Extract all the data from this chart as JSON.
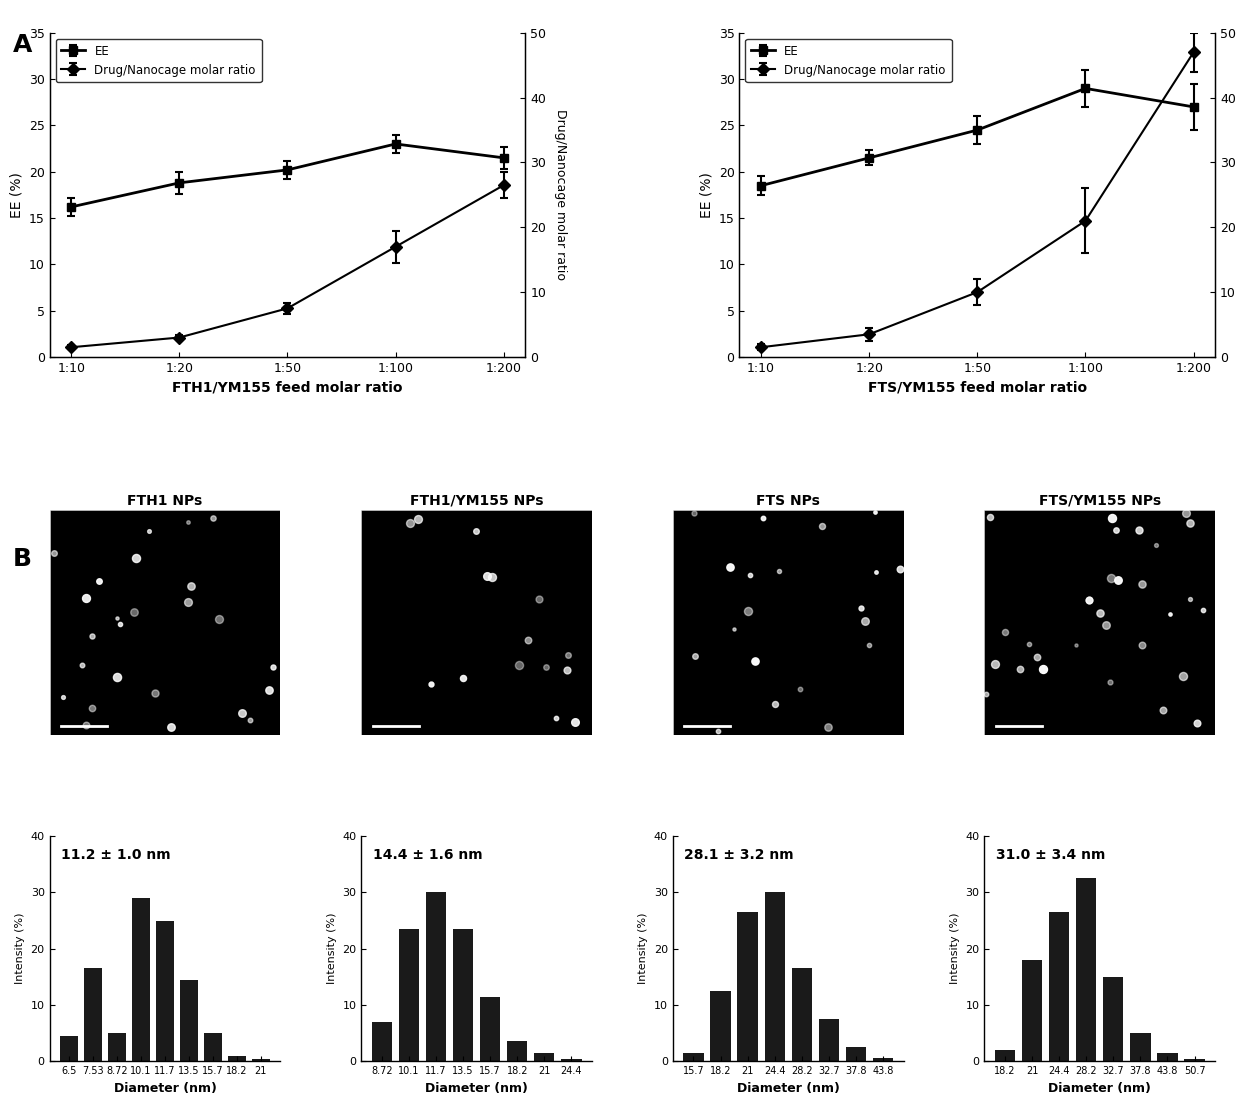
{
  "panel_A_left": {
    "xlabel": "FTH1/YM155 feed molar ratio",
    "xtick_labels": [
      "1:10",
      "1:20",
      "1:50",
      "1:100",
      "1:200"
    ],
    "EE_values": [
      16.2,
      18.8,
      20.2,
      23.0,
      21.5
    ],
    "EE_errors": [
      1.0,
      1.2,
      1.0,
      1.0,
      1.2
    ],
    "drug_values": [
      1.5,
      3.0,
      7.5,
      17.0,
      26.5
    ],
    "drug_errors": [
      0.3,
      0.4,
      0.8,
      2.5,
      2.0
    ],
    "EE_ylim": [
      0,
      35
    ],
    "drug_ylim": [
      0,
      50
    ],
    "EE_yticks": [
      0,
      5,
      10,
      15,
      20,
      25,
      30,
      35
    ],
    "drug_yticks": [
      0,
      10,
      20,
      30,
      40,
      50
    ]
  },
  "panel_A_right": {
    "xlabel": "FTS/YM155 feed molar ratio",
    "xtick_labels": [
      "1:10",
      "1:20",
      "1:50",
      "1:100",
      "1:200"
    ],
    "EE_values": [
      18.5,
      21.5,
      24.5,
      29.0,
      27.0
    ],
    "EE_errors": [
      1.0,
      0.8,
      1.5,
      2.0,
      2.5
    ],
    "drug_values": [
      1.5,
      3.5,
      10.0,
      21.0,
      47.0
    ],
    "drug_errors": [
      0.5,
      1.0,
      2.0,
      5.0,
      3.0
    ],
    "EE_ylim": [
      0,
      35
    ],
    "drug_ylim": [
      0,
      50
    ],
    "EE_yticks": [
      0,
      5,
      10,
      15,
      20,
      25,
      30,
      35
    ],
    "drug_yticks": [
      0,
      10,
      20,
      30,
      40,
      50
    ]
  },
  "histogram_titles": [
    "11.2 ± 1.0 nm",
    "14.4 ± 1.6 nm",
    "28.1 ± 3.2 nm",
    "31.0 ± 3.4 nm"
  ],
  "hist1": {
    "labels": [
      "6.5",
      "7.53",
      "8.72",
      "10.1",
      "11.7",
      "13.5",
      "15.7",
      "18.2",
      "21"
    ],
    "values": [
      4.5,
      16.5,
      5.0,
      29.0,
      25.0,
      14.5,
      5.0,
      1.0,
      0.3
    ]
  },
  "hist2": {
    "labels": [
      "8.72",
      "10.1",
      "11.7",
      "13.5",
      "15.7",
      "18.2",
      "21",
      "24.4"
    ],
    "values": [
      7.0,
      23.5,
      30.0,
      23.5,
      11.5,
      3.5,
      1.5,
      0.3
    ]
  },
  "hist3": {
    "labels": [
      "15.7",
      "18.2",
      "21",
      "24.4",
      "28.2",
      "32.7",
      "37.8",
      "43.8"
    ],
    "values": [
      1.5,
      12.5,
      26.5,
      30.0,
      16.5,
      7.5,
      2.5,
      0.5
    ]
  },
  "hist4": {
    "labels": [
      "18.2",
      "21",
      "24.4",
      "28.2",
      "32.7",
      "37.8",
      "43.8",
      "50.7"
    ],
    "values": [
      2.0,
      18.0,
      26.5,
      32.5,
      15.0,
      5.0,
      1.5,
      0.3
    ]
  },
  "em_titles": [
    "FTH1 NPs",
    "FTH1/YM155 NPs",
    "FTS NPs",
    "FTS/YM155 NPs"
  ],
  "line_color": "#000000",
  "bar_color": "#1a1a1a",
  "bg_color": "#ffffff"
}
